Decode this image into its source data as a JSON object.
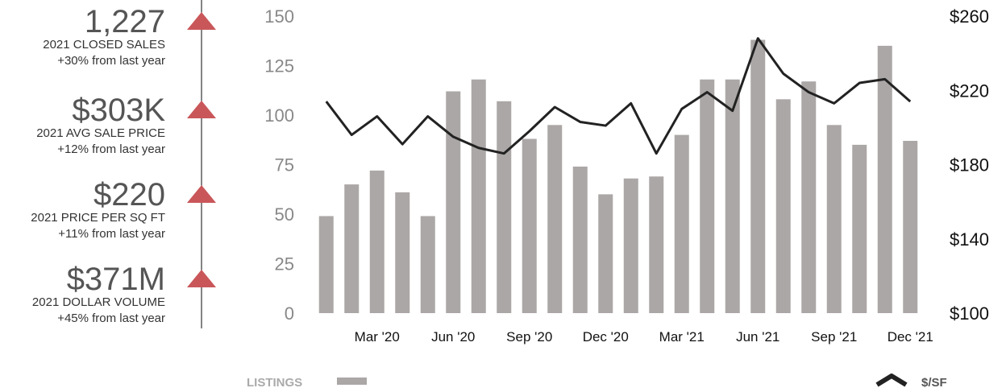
{
  "stats": [
    {
      "value": "1,227",
      "label": "2021 CLOSED SALES",
      "change": "+30% from last year"
    },
    {
      "value": "$303K",
      "label": "2021 AVG SALE PRICE",
      "change": "+12% from last year"
    },
    {
      "value": "$220",
      "label": "2021 PRICE PER SQ FT",
      "change": "+11% from last year"
    },
    {
      "value": "$371M",
      "label": "2021 DOLLAR VOLUME",
      "change": "+45% from last year"
    }
  ],
  "chart_data": {
    "type": "bar",
    "categories": [
      null,
      null,
      "Mar '20",
      null,
      null,
      "Jun '20",
      null,
      null,
      "Sep '20",
      null,
      null,
      "Dec '20",
      null,
      null,
      "Mar '21",
      null,
      null,
      "Jun '21",
      null,
      null,
      "Sep '21",
      null,
      null,
      "Dec '21"
    ],
    "series": [
      {
        "name": "LISTINGS",
        "type": "bar",
        "color": "#aba7a6",
        "values": [
          49,
          65,
          72,
          61,
          49,
          112,
          118,
          107,
          88,
          95,
          74,
          60,
          68,
          69,
          90,
          118,
          118,
          138,
          108,
          117,
          95,
          85,
          135,
          87
        ]
      },
      {
        "name": "$/SF",
        "type": "line",
        "axis": "y2",
        "color": "#222222",
        "values": [
          214,
          196,
          206,
          191,
          206,
          195,
          189,
          186,
          198,
          211,
          203,
          201,
          213,
          186,
          210,
          219,
          209,
          248,
          229,
          219,
          213,
          224,
          226,
          214
        ]
      }
    ],
    "ylim": [
      0,
      150
    ],
    "yticks": [
      0,
      25,
      50,
      75,
      100,
      125,
      150
    ],
    "y2lim": [
      100,
      260
    ],
    "y2ticks": [
      {
        "value": 100,
        "label": "$100"
      },
      {
        "value": 140,
        "label": "$140"
      },
      {
        "value": 180,
        "label": "$180"
      },
      {
        "value": 220,
        "label": "$220"
      },
      {
        "value": 260,
        "label": "$260"
      }
    ],
    "grid": false
  }
}
